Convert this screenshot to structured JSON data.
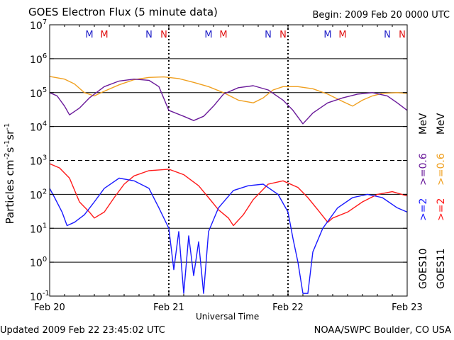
{
  "header": {
    "title": "GOES Electron Flux (5 minute data)",
    "begin": "Begin: 2009 Feb 20 0000 UTC"
  },
  "footer": {
    "updated": "Updated 2009 Feb 22 23:45:02 UTC",
    "credit": "NOAA/SWPC Boulder, CO USA"
  },
  "colors": {
    "goes10_gt2": "#1a1aff",
    "goes11_gt2": "#ff1a1a",
    "goes10_gt06": "#6a1a9a",
    "goes11_gt06": "#f0a020",
    "label_blue": "#2020c8",
    "label_red": "#e01010"
  },
  "chart_data": {
    "type": "line",
    "title": "GOES Electron Flux (5 minute data)",
    "xlabel": "Universal Time",
    "ylabel": "Particles cm⁻²s⁻¹sr⁻¹",
    "y_scale": "log",
    "ylim": [
      0.1,
      10000000
    ],
    "xlim": [
      "2009-02-20",
      "2009-02-23"
    ],
    "x_ticks": [
      "Feb 20",
      "Feb 21",
      "Feb 22",
      "Feb 23"
    ],
    "y_ticks": [
      {
        "base": "10",
        "exp": "-1"
      },
      {
        "base": "10",
        "exp": "0"
      },
      {
        "base": "10",
        "exp": "1"
      },
      {
        "base": "10",
        "exp": "2"
      },
      {
        "base": "10",
        "exp": "3"
      },
      {
        "base": "10",
        "exp": "4"
      },
      {
        "base": "10",
        "exp": "5"
      },
      {
        "base": "10",
        "exp": "6"
      },
      {
        "base": "10",
        "exp": "7"
      }
    ],
    "grid": "horizontal at each decade; dashed at 10^3",
    "local_time_markers": [
      {
        "label": "M",
        "satellite": "GOES10",
        "x": [
          "2009-02-20T08:00",
          "2009-02-21T08:00",
          "2009-02-22T08:00"
        ]
      },
      {
        "label": "M",
        "satellite": "GOES11",
        "x": [
          "2009-02-20T11:00",
          "2009-02-21T11:00",
          "2009-02-22T11:00"
        ]
      },
      {
        "label": "N",
        "satellite": "GOES10",
        "x": [
          "2009-02-20T20:00",
          "2009-02-21T20:00",
          "2009-02-22T20:00"
        ]
      },
      {
        "label": "N",
        "satellite": "GOES11",
        "x": [
          "2009-02-20T23:00",
          "2009-02-21T23:00",
          "2009-02-22T23:00"
        ]
      }
    ],
    "day_boundaries": [
      "2009-02-21",
      "2009-02-22"
    ],
    "legend": {
      "placement": "right, rotated",
      "satellites": [
        "GOES10",
        "GOES11"
      ],
      "energies": [
        ">=2",
        ">=0.6"
      ],
      "unit": "MeV"
    },
    "series": [
      {
        "name": "GOES11 >=0.6 MeV",
        "color": "#f0a020",
        "points": [
          [
            "2009-02-20T00:00",
            300000
          ],
          [
            "2009-02-20T03:00",
            250000
          ],
          [
            "2009-02-20T05:00",
            180000
          ],
          [
            "2009-02-20T07:00",
            100000
          ],
          [
            "2009-02-20T09:00",
            80000
          ],
          [
            "2009-02-20T11:00",
            110000
          ],
          [
            "2009-02-20T14:00",
            170000
          ],
          [
            "2009-02-20T17:00",
            240000
          ],
          [
            "2009-02-20T20:00",
            280000
          ],
          [
            "2009-02-20T23:00",
            290000
          ],
          [
            "2009-02-21T02:00",
            260000
          ],
          [
            "2009-02-21T05:00",
            200000
          ],
          [
            "2009-02-21T08:00",
            150000
          ],
          [
            "2009-02-21T11:00",
            100000
          ],
          [
            "2009-02-21T14:00",
            60000
          ],
          [
            "2009-02-21T17:00",
            50000
          ],
          [
            "2009-02-21T19:00",
            70000
          ],
          [
            "2009-02-21T21:00",
            120000
          ],
          [
            "2009-02-21T23:00",
            150000
          ],
          [
            "2009-02-22T02:00",
            150000
          ],
          [
            "2009-02-22T05:00",
            130000
          ],
          [
            "2009-02-22T08:00",
            90000
          ],
          [
            "2009-02-22T11:00",
            55000
          ],
          [
            "2009-02-22T13:00",
            40000
          ],
          [
            "2009-02-22T15:00",
            60000
          ],
          [
            "2009-02-22T17:00",
            80000
          ],
          [
            "2009-02-22T19:00",
            95000
          ],
          [
            "2009-02-22T22:00",
            100000
          ],
          [
            "2009-02-23T00:00",
            95000
          ]
        ]
      },
      {
        "name": "GOES10 >=0.6 MeV",
        "color": "#6a1a9a",
        "points": [
          [
            "2009-02-20T00:00",
            100000
          ],
          [
            "2009-02-20T01:30",
            80000
          ],
          [
            "2009-02-20T03:00",
            40000
          ],
          [
            "2009-02-20T04:00",
            22000
          ],
          [
            "2009-02-20T06:00",
            35000
          ],
          [
            "2009-02-20T08:00",
            70000
          ],
          [
            "2009-02-20T11:00",
            150000
          ],
          [
            "2009-02-20T14:00",
            220000
          ],
          [
            "2009-02-20T17:00",
            250000
          ],
          [
            "2009-02-20T20:00",
            230000
          ],
          [
            "2009-02-20T22:00",
            150000
          ],
          [
            "2009-02-21T00:00",
            30000
          ],
          [
            "2009-02-21T03:00",
            20000
          ],
          [
            "2009-02-21T05:00",
            15000
          ],
          [
            "2009-02-21T07:00",
            20000
          ],
          [
            "2009-02-21T09:00",
            40000
          ],
          [
            "2009-02-21T11:00",
            90000
          ],
          [
            "2009-02-21T14:00",
            140000
          ],
          [
            "2009-02-21T17:00",
            160000
          ],
          [
            "2009-02-21T20:00",
            120000
          ],
          [
            "2009-02-21T23:00",
            60000
          ],
          [
            "2009-02-22T01:00",
            30000
          ],
          [
            "2009-02-22T03:00",
            12000
          ],
          [
            "2009-02-22T05:00",
            25000
          ],
          [
            "2009-02-22T08:00",
            50000
          ],
          [
            "2009-02-22T11:00",
            70000
          ],
          [
            "2009-02-22T14:00",
            90000
          ],
          [
            "2009-02-22T17:00",
            100000
          ],
          [
            "2009-02-22T20:00",
            80000
          ],
          [
            "2009-02-22T22:00",
            50000
          ],
          [
            "2009-02-23T00:00",
            30000
          ]
        ]
      },
      {
        "name": "GOES11 >=2 MeV",
        "color": "#ff1a1a",
        "points": [
          [
            "2009-02-20T00:00",
            800
          ],
          [
            "2009-02-20T02:00",
            600
          ],
          [
            "2009-02-20T04:00",
            300
          ],
          [
            "2009-02-20T06:00",
            60
          ],
          [
            "2009-02-20T08:00",
            30
          ],
          [
            "2009-02-20T09:00",
            20
          ],
          [
            "2009-02-20T11:00",
            30
          ],
          [
            "2009-02-20T13:00",
            80
          ],
          [
            "2009-02-20T15:00",
            200
          ],
          [
            "2009-02-20T17:00",
            350
          ],
          [
            "2009-02-20T20:00",
            500
          ],
          [
            "2009-02-21T00:00",
            550
          ],
          [
            "2009-02-21T03:00",
            380
          ],
          [
            "2009-02-21T06:00",
            180
          ],
          [
            "2009-02-21T08:00",
            80
          ],
          [
            "2009-02-21T10:00",
            35
          ],
          [
            "2009-02-21T12:00",
            20
          ],
          [
            "2009-02-21T13:00",
            12
          ],
          [
            "2009-02-21T15:00",
            25
          ],
          [
            "2009-02-21T17:00",
            70
          ],
          [
            "2009-02-21T20:00",
            200
          ],
          [
            "2009-02-21T23:00",
            250
          ],
          [
            "2009-02-22T02:00",
            160
          ],
          [
            "2009-02-22T04:00",
            80
          ],
          [
            "2009-02-22T06:00",
            35
          ],
          [
            "2009-02-22T08:00",
            15
          ],
          [
            "2009-02-22T09:00",
            20
          ],
          [
            "2009-02-22T12:00",
            30
          ],
          [
            "2009-02-22T15:00",
            60
          ],
          [
            "2009-02-22T18:00",
            100
          ],
          [
            "2009-02-22T21:00",
            120
          ],
          [
            "2009-02-23T00:00",
            90
          ]
        ]
      },
      {
        "name": "GOES10 >=2 MeV",
        "color": "#1a1aff",
        "points": [
          [
            "2009-02-20T00:00",
            150
          ],
          [
            "2009-02-20T01:00",
            80
          ],
          [
            "2009-02-20T02:30",
            30
          ],
          [
            "2009-02-20T03:30",
            12
          ],
          [
            "2009-02-20T05:00",
            15
          ],
          [
            "2009-02-20T07:00",
            25
          ],
          [
            "2009-02-20T09:00",
            60
          ],
          [
            "2009-02-20T11:00",
            150
          ],
          [
            "2009-02-20T14:00",
            300
          ],
          [
            "2009-02-20T17:00",
            250
          ],
          [
            "2009-02-20T20:00",
            150
          ],
          [
            "2009-02-20T22:00",
            40
          ],
          [
            "2009-02-21T00:00",
            10
          ],
          [
            "2009-02-21T01:00",
            0.6
          ],
          [
            "2009-02-21T02:00",
            8
          ],
          [
            "2009-02-21T03:00",
            0.12
          ],
          [
            "2009-02-21T04:00",
            6
          ],
          [
            "2009-02-21T05:00",
            0.4
          ],
          [
            "2009-02-21T06:00",
            4
          ],
          [
            "2009-02-21T07:00",
            0.12
          ],
          [
            "2009-02-21T08:00",
            8
          ],
          [
            "2009-02-21T10:00",
            40
          ],
          [
            "2009-02-21T13:00",
            130
          ],
          [
            "2009-02-21T16:00",
            180
          ],
          [
            "2009-02-21T19:00",
            200
          ],
          [
            "2009-02-21T22:00",
            100
          ],
          [
            "2009-02-22T00:00",
            30
          ],
          [
            "2009-02-22T01:00",
            5
          ],
          [
            "2009-02-22T02:00",
            1
          ],
          [
            "2009-02-22T03:00",
            0.12
          ],
          [
            "2009-02-22T04:00",
            0.12
          ],
          [
            "2009-02-22T05:00",
            2
          ],
          [
            "2009-02-22T07:00",
            10
          ],
          [
            "2009-02-22T10:00",
            40
          ],
          [
            "2009-02-22T13:00",
            80
          ],
          [
            "2009-02-22T16:00",
            100
          ],
          [
            "2009-02-22T19:00",
            80
          ],
          [
            "2009-02-22T22:00",
            40
          ],
          [
            "2009-02-23T00:00",
            30
          ]
        ]
      }
    ]
  }
}
